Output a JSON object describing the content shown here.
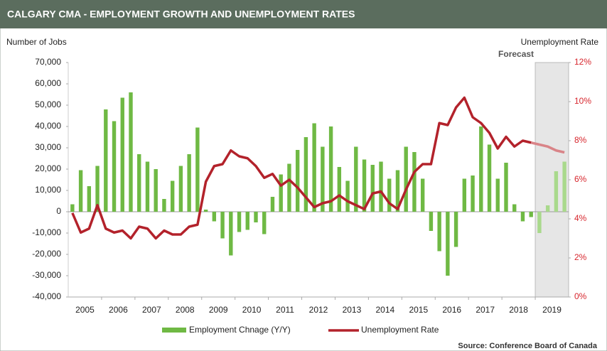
{
  "chart_data": {
    "type": "bar-line",
    "title": "CALGARY CMA -  EMPLOYMENT GROWTH AND UNEMPLOYMENT RATES",
    "y_label": "Number of Jobs",
    "y2_label": "Unemployment Rate",
    "annotation": "Forecast",
    "forecast_category": "2019",
    "source": "Source: Conference Board of Canada",
    "categories": [
      "2005",
      "2006",
      "2007",
      "2008",
      "2009",
      "2010",
      "2011",
      "2012",
      "2013",
      "2014",
      "2015",
      "2016",
      "2017",
      "2018",
      "2019"
    ],
    "series": [
      {
        "name": "Employment Chnage (Y/Y)",
        "type": "bar",
        "color": "#6fb944",
        "forecast_color": "#a9d98c",
        "values": [
          [
            3500,
            19500,
            12000,
            21500
          ],
          [
            48000,
            42500,
            53500,
            56000
          ],
          [
            27000,
            23500,
            20000,
            6000
          ],
          [
            14500,
            21500,
            27000,
            39500
          ],
          [
            1000,
            -4500,
            -12500,
            -20500
          ],
          [
            -9500,
            -8500,
            -5000,
            -10500
          ],
          [
            7000,
            17500,
            22500,
            29000
          ],
          [
            35000,
            41500,
            30500,
            40000
          ],
          [
            21000,
            14500,
            30500,
            24500
          ],
          [
            22000,
            23500,
            15500,
            19500
          ],
          [
            30500,
            28000,
            15500,
            -9000
          ],
          [
            -18500,
            -30000,
            -16500,
            15500
          ],
          [
            17000,
            40000,
            31500,
            15500
          ],
          [
            23000,
            3500,
            -4500,
            -2500
          ],
          [
            -10000,
            3000,
            19000,
            23500
          ]
        ]
      },
      {
        "name": "Unemployment Rate",
        "type": "line",
        "axis": "y2",
        "color": "#b3222b",
        "forecast_color": "#d98488",
        "values": [
          [
            4.3,
            3.3,
            3.5,
            4.7
          ],
          [
            3.5,
            3.3,
            3.4,
            3.0
          ],
          [
            3.6,
            3.5,
            3.0,
            3.4
          ],
          [
            3.2,
            3.2,
            3.6,
            3.7
          ],
          [
            5.9,
            6.7,
            6.8,
            7.5
          ],
          [
            7.2,
            7.1,
            6.7,
            6.1
          ],
          [
            6.3,
            5.7,
            6.0,
            5.6
          ],
          [
            5.1,
            4.6,
            4.8,
            4.9
          ],
          [
            5.2,
            4.9,
            4.7,
            4.5
          ],
          [
            5.3,
            5.4,
            4.8,
            4.5
          ],
          [
            5.5,
            6.4,
            6.8,
            6.8
          ],
          [
            8.9,
            8.8,
            9.7,
            10.2
          ],
          [
            9.2,
            8.9,
            8.4,
            7.6
          ],
          [
            8.2,
            7.7,
            8.0,
            7.9
          ],
          [
            7.8,
            7.7,
            7.5,
            7.4
          ]
        ]
      }
    ],
    "ylim": [
      -40000,
      70000
    ],
    "yticks": [
      {
        "value": -40000,
        "label": "-40,000"
      },
      {
        "value": -30000,
        "label": "-30,000"
      },
      {
        "value": -20000,
        "label": "-20,000"
      },
      {
        "value": -10000,
        "label": "-10,000"
      },
      0,
      {
        "value": 10000,
        "label": "10,000"
      },
      {
        "value": 20000,
        "label": "20,000"
      },
      {
        "value": 30000,
        "label": "30,000"
      },
      {
        "value": 40000,
        "label": "40,000"
      },
      {
        "value": 50000,
        "label": "50,000"
      },
      {
        "value": 60000,
        "label": "60,000"
      },
      {
        "value": 70000,
        "label": "70,000"
      }
    ],
    "y2lim": [
      0,
      12
    ],
    "y2ticks": [
      {
        "value": 0,
        "label": "0%"
      },
      {
        "value": 2,
        "label": "2%"
      },
      {
        "value": 4,
        "label": "4%"
      },
      {
        "value": 6,
        "label": "6%"
      },
      {
        "value": 8,
        "label": "8%"
      },
      {
        "value": 10,
        "label": "10%"
      },
      {
        "value": 12,
        "label": "12%"
      }
    ],
    "grid": false
  }
}
